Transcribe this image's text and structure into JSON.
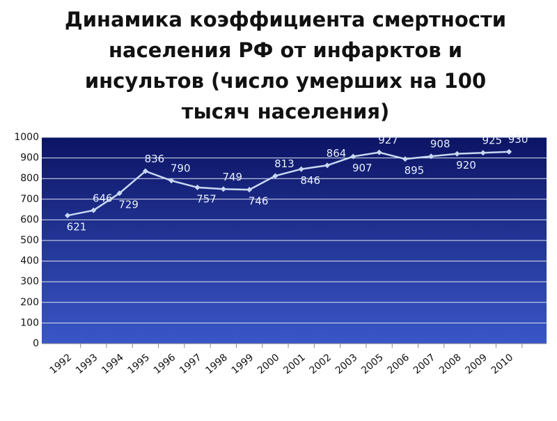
{
  "chart_data": {
    "type": "line",
    "title": [
      "Динамика коэффициента смертности",
      "населения РФ от инфарктов и",
      "инсультов (число умерших на 100",
      "тысяч населения)"
    ],
    "categories": [
      "1992",
      "1993",
      "1994",
      "1995",
      "1996",
      "1997",
      "1998",
      "1999",
      "2000",
      "2001",
      "2002",
      "2003",
      "2005",
      "2006",
      "2007",
      "2008",
      "2009",
      "2010"
    ],
    "series": [
      {
        "color": "#c8d8f2",
        "values": [
          621,
          646,
          729,
          836,
          790,
          757,
          749,
          746,
          813,
          846,
          864,
          907,
          927,
          895,
          908,
          920,
          925,
          930
        ]
      }
    ],
    "ylim": [
      0,
      1000
    ],
    "yticks": [
      0,
      100,
      200,
      300,
      400,
      500,
      600,
      700,
      800,
      900,
      1000
    ],
    "grid": true
  }
}
